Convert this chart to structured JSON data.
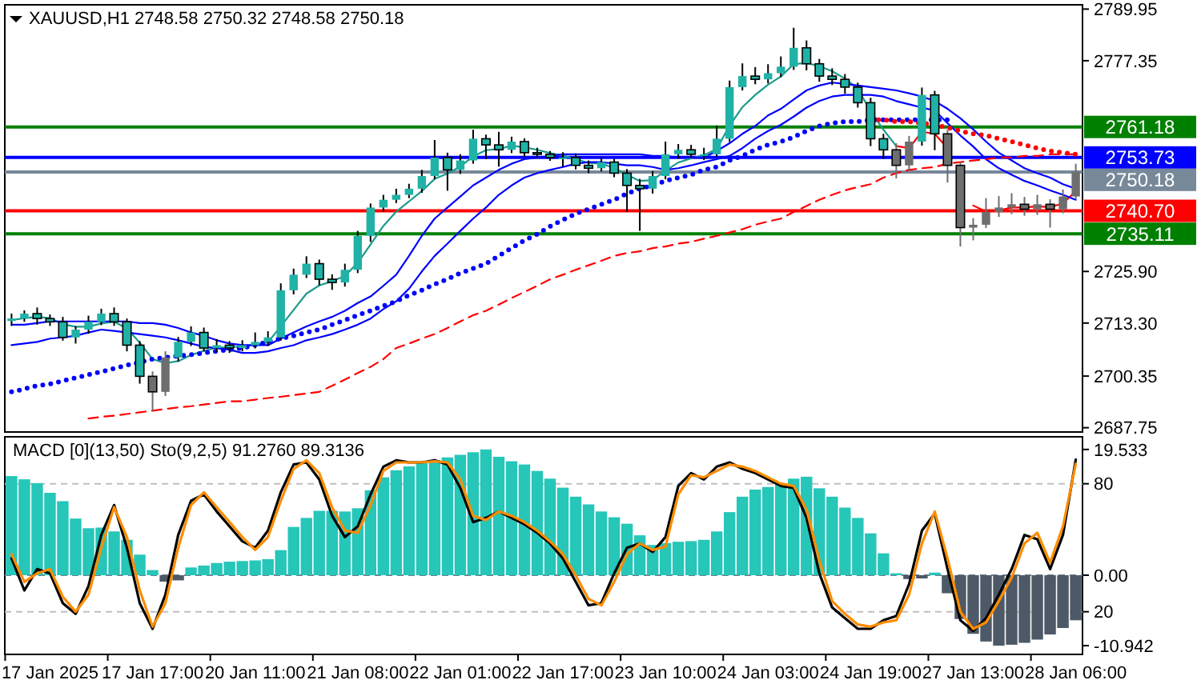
{
  "chart_data": [
    {
      "type": "candlestick",
      "title": "XAUUSD,H1  2748.58 2750.32 2748.58 2750.18",
      "categories": [
        null,
        null,
        null,
        null,
        null,
        null,
        null,
        null,
        null,
        null,
        null,
        null,
        null,
        null,
        null,
        null,
        null,
        null,
        null,
        null,
        null,
        null,
        null,
        null,
        null,
        null,
        null,
        null,
        null,
        null,
        null,
        null,
        null,
        null,
        null,
        null,
        null,
        null,
        null,
        null,
        null,
        null,
        null,
        null,
        null,
        null,
        null,
        null,
        null,
        null,
        null,
        null,
        null,
        null,
        null,
        null,
        null,
        null,
        null,
        null,
        null,
        null,
        null,
        null,
        null,
        null,
        null,
        null,
        null,
        null,
        null,
        null,
        null,
        null,
        null,
        null,
        null,
        null,
        null,
        null,
        null,
        null,
        null,
        null
      ],
      "ohlc": [
        [
          2713.8,
          2715.6,
          2712.6,
          2714.4
        ],
        [
          2714.4,
          2716.4,
          2713.6,
          2715.6
        ],
        [
          2715.6,
          2717.1,
          2712.9,
          2714.4
        ],
        [
          2714.4,
          2715.4,
          2712.6,
          2713.6
        ],
        [
          2713.6,
          2714.8,
          2709.0,
          2709.8
        ],
        [
          2709.8,
          2712.5,
          2708.3,
          2711.7
        ],
        [
          2711.7,
          2715.1,
          2710.7,
          2713.6
        ],
        [
          2713.6,
          2716.8,
          2712.8,
          2715.6
        ],
        [
          2715.6,
          2717.1,
          2712.6,
          2713.6
        ],
        [
          2713.6,
          2714.4,
          2706.4,
          2707.9
        ],
        [
          2707.9,
          2708.9,
          2698.5,
          2700.3
        ],
        [
          2700.3,
          2701.5,
          2691.9,
          2696.5
        ],
        [
          2696.5,
          2706.4,
          2695.5,
          2704.9
        ],
        [
          2704.9,
          2709.9,
          2703.9,
          2708.7
        ],
        [
          2708.7,
          2712.5,
          2707.7,
          2711.0
        ],
        [
          2711.0,
          2712.2,
          2706.4,
          2707.2
        ],
        [
          2707.2,
          2709.4,
          2706.2,
          2707.9
        ],
        [
          2707.9,
          2708.9,
          2706.0,
          2707.2
        ],
        [
          2707.2,
          2709.1,
          2706.4,
          2707.9
        ],
        [
          2707.9,
          2711.0,
          2707.1,
          2708.7
        ],
        [
          2708.7,
          2711.3,
          2707.7,
          2709.8
        ],
        [
          2709.8,
          2723.0,
          2709.0,
          2721.3
        ],
        [
          2721.3,
          2726.6,
          2720.3,
          2725.1
        ],
        [
          2725.1,
          2729.6,
          2724.3,
          2727.8
        ],
        [
          2727.8,
          2728.8,
          2722.5,
          2724.0
        ],
        [
          2724.0,
          2725.2,
          2721.4,
          2723.2
        ],
        [
          2723.2,
          2727.8,
          2722.2,
          2726.3
        ],
        [
          2726.3,
          2735.8,
          2725.5,
          2734.6
        ],
        [
          2734.6,
          2742.5,
          2733.1,
          2741.5
        ],
        [
          2741.5,
          2744.6,
          2740.5,
          2743.4
        ],
        [
          2743.4,
          2746.1,
          2742.6,
          2744.6
        ],
        [
          2744.6,
          2747.3,
          2743.8,
          2746.1
        ],
        [
          2746.1,
          2750.7,
          2745.1,
          2749.2
        ],
        [
          2749.2,
          2758.0,
          2748.4,
          2753.7
        ],
        [
          2753.7,
          2754.9,
          2745.6,
          2750.7
        ],
        [
          2750.7,
          2754.5,
          2749.7,
          2753.0
        ],
        [
          2753.0,
          2760.5,
          2752.2,
          2758.3
        ],
        [
          2758.3,
          2759.3,
          2753.3,
          2756.8
        ],
        [
          2756.8,
          2760.0,
          2751.5,
          2755.6
        ],
        [
          2755.6,
          2758.8,
          2754.8,
          2757.6
        ],
        [
          2757.6,
          2758.4,
          2753.9,
          2754.9
        ],
        [
          2754.9,
          2756.1,
          2753.5,
          2754.5
        ],
        [
          2754.5,
          2755.3,
          2752.9,
          2753.7
        ],
        [
          2753.7,
          2755.0,
          2751.5,
          2753.7
        ],
        [
          2753.7,
          2754.7,
          2750.8,
          2751.8
        ],
        [
          2751.8,
          2753.0,
          2749.9,
          2751.1
        ],
        [
          2751.1,
          2753.8,
          2750.3,
          2752.6
        ],
        [
          2752.6,
          2753.4,
          2748.9,
          2749.9
        ],
        [
          2749.9,
          2750.9,
          2740.5,
          2746.9
        ],
        [
          2746.9,
          2748.5,
          2735.8,
          2746.1
        ],
        [
          2746.1,
          2750.4,
          2744.9,
          2749.2
        ],
        [
          2749.2,
          2757.6,
          2748.4,
          2754.5
        ],
        [
          2754.5,
          2757.0,
          2753.5,
          2755.6
        ],
        [
          2755.6,
          2756.8,
          2753.7,
          2754.5
        ],
        [
          2754.5,
          2756.1,
          2753.1,
          2754.5
        ],
        [
          2754.5,
          2761.5,
          2753.9,
          2758.3
        ],
        [
          2758.3,
          2772.5,
          2757.5,
          2770.9
        ],
        [
          2770.9,
          2776.7,
          2770.1,
          2773.6
        ],
        [
          2773.6,
          2775.8,
          2771.6,
          2772.8
        ],
        [
          2772.8,
          2776.5,
          2771.8,
          2774.3
        ],
        [
          2774.3,
          2778.4,
          2773.3,
          2775.9
        ],
        [
          2775.9,
          2785.4,
          2775.1,
          2780.5
        ],
        [
          2780.5,
          2782.3,
          2775.0,
          2776.6
        ],
        [
          2776.6,
          2777.8,
          2772.2,
          2773.6
        ],
        [
          2773.6,
          2775.5,
          2771.4,
          2772.8
        ],
        [
          2772.8,
          2774.1,
          2769.3,
          2770.9
        ],
        [
          2770.9,
          2772.0,
          2765.9,
          2767.1
        ],
        [
          2767.1,
          2768.3,
          2756.5,
          2758.3
        ],
        [
          2758.3,
          2759.5,
          2753.4,
          2755.6
        ],
        [
          2755.6,
          2757.2,
          2748.6,
          2751.8
        ],
        [
          2751.8,
          2759.0,
          2750.6,
          2757.6
        ],
        [
          2757.6,
          2770.8,
          2756.6,
          2769.0
        ],
        [
          2769.0,
          2770.0,
          2755.5,
          2759.5
        ],
        [
          2759.5,
          2760.5,
          2747.6,
          2751.8
        ],
        [
          2751.8,
          2752.6,
          2732.0,
          2736.6
        ],
        [
          2736.6,
          2738.9,
          2733.5,
          2737.3
        ],
        [
          2737.3,
          2743.8,
          2736.5,
          2740.4
        ],
        [
          2740.4,
          2744.3,
          2739.2,
          2741.5
        ],
        [
          2741.5,
          2745.0,
          2739.9,
          2742.3
        ],
        [
          2742.3,
          2744.1,
          2739.5,
          2741.1
        ],
        [
          2741.1,
          2744.6,
          2739.7,
          2742.3
        ],
        [
          2742.3,
          2743.5,
          2736.6,
          2741.1
        ],
        [
          2741.1,
          2745.9,
          2740.1,
          2744.2
        ],
        [
          2744.2,
          2752.2,
          2743.6,
          2750.18
        ]
      ],
      "colors": [
        "#20b2a6",
        "#20b2a6",
        "#20b2a6",
        "#20b2a6",
        "#20b2a6",
        "#20b2a6",
        "#20b2a6",
        "#20b2a6",
        "#20b2a6",
        "#20b2a6",
        "#20b2a6",
        "#6e6e6e",
        "#6e6e6e",
        "#20b2a6",
        "#20b2a6",
        "#20b2a6",
        "#20b2a6",
        "#20b2a6",
        "#20b2a6",
        "#20b2a6",
        "#20b2a6",
        "#20b2a6",
        "#20b2a6",
        "#20b2a6",
        "#20b2a6",
        "#20b2a6",
        "#20b2a6",
        "#20b2a6",
        "#20b2a6",
        "#20b2a6",
        "#20b2a6",
        "#20b2a6",
        "#20b2a6",
        "#20b2a6",
        "#20b2a6",
        "#20b2a6",
        "#20b2a6",
        "#20b2a6",
        "#20b2a6",
        "#20b2a6",
        "#20b2a6",
        "#20b2a6",
        "#20b2a6",
        "#20b2a6",
        "#20b2a6",
        "#20b2a6",
        "#20b2a6",
        "#20b2a6",
        "#20b2a6",
        "#20b2a6",
        "#20b2a6",
        "#20b2a6",
        "#20b2a6",
        "#20b2a6",
        "#20b2a6",
        "#20b2a6",
        "#20b2a6",
        "#20b2a6",
        "#20b2a6",
        "#20b2a6",
        "#20b2a6",
        "#20b2a6",
        "#20b2a6",
        "#20b2a6",
        "#20b2a6",
        "#20b2a6",
        "#20b2a6",
        "#20b2a6",
        "#20b2a6",
        "#6e6e6e",
        "#6e6e6e",
        "#20b2a6",
        "#20b2a6",
        "#6e6e6e",
        "#6e6e6e",
        "#6e6e6e",
        "#6e6e6e",
        "#6e6e6e",
        "#6e6e6e",
        "#6e6e6e",
        "#6e6e6e",
        "#6e6e6e",
        "#6e6e6e",
        "#6e6e6e"
      ],
      "series": [
        {
          "type": "line",
          "color": "#1a9a8c",
          "line_style": "solid",
          "values": [
            2714.0,
            2714.5,
            2714.8,
            2714.5,
            2713.0,
            2712.4,
            2712.4,
            2713.2,
            2713.6,
            2712.0,
            2708.5,
            2704.5,
            2703.5,
            2704.0,
            2705.5,
            2706.5,
            2707.3,
            2707.4,
            2707.6,
            2708.0,
            2708.6,
            2712.5,
            2716.5,
            2720.5,
            2722.5,
            2723.5,
            2724.8,
            2728.0,
            2732.5,
            2737.0,
            2740.5,
            2743.0,
            2745.5,
            2748.5,
            2749.8,
            2751.5,
            2754.0,
            2755.5,
            2755.8,
            2756.6,
            2756.2,
            2755.6,
            2754.8,
            2754.2,
            2753.3,
            2752.4,
            2752.2,
            2751.2,
            2749.5,
            2748.0,
            2748.2,
            2750.5,
            2752.5,
            2753.5,
            2754.3,
            2755.8,
            2761.5,
            2766.0,
            2769.0,
            2771.5,
            2773.5,
            2776.5,
            2776.8,
            2776.0,
            2774.8,
            2773.0,
            2770.5,
            2765.0,
            2760.5,
            2756.5,
            null,
            null,
            null,
            null,
            null,
            null,
            null,
            null,
            null,
            null,
            null,
            null,
            null,
            null
          ]
        },
        {
          "type": "line",
          "color": "#ff0000",
          "line_style": "solid",
          "values": [
            null,
            null,
            null,
            null,
            null,
            null,
            null,
            null,
            null,
            null,
            null,
            null,
            null,
            null,
            null,
            null,
            null,
            null,
            null,
            null,
            null,
            null,
            null,
            null,
            null,
            null,
            null,
            null,
            null,
            null,
            null,
            null,
            null,
            null,
            null,
            null,
            null,
            null,
            null,
            null,
            null,
            null,
            null,
            null,
            null,
            null,
            null,
            null,
            null,
            null,
            null,
            null,
            null,
            null,
            null,
            null,
            null,
            null,
            null,
            null,
            null,
            null,
            null,
            null,
            null,
            null,
            null,
            null,
            null,
            2756.5,
            2756.0,
            2760.0,
            2759.5,
            2756.0,
            null,
            2742.0,
            2740.5,
            2740.8,
            2741.5,
            2741.5,
            2741.8,
            2741.6,
            2742.5,
            2745.5
          ]
        },
        {
          "type": "line",
          "color": "#0000ff",
          "line_style": "solid",
          "values": [
            2712.9,
            2712.9,
            2713.3,
            2713.7,
            2713.7,
            2713.7,
            2713.7,
            2713.7,
            2713.7,
            2713.7,
            2713.3,
            2713.3,
            2712.9,
            2712.1,
            2711.0,
            2710.2,
            2709.1,
            2708.3,
            2707.9,
            2707.9,
            2707.9,
            2709.5,
            2711.0,
            2712.5,
            2713.7,
            2714.8,
            2716.3,
            2718.2,
            2719.8,
            2722.4,
            2725.1,
            2729.7,
            2734.6,
            2738.8,
            2741.5,
            2744.2,
            2746.9,
            2748.8,
            2750.7,
            2752.2,
            2753.3,
            2753.7,
            2754.1,
            2754.5,
            2754.5,
            2754.5,
            2754.5,
            2754.5,
            2754.5,
            2754.5,
            2754.1,
            2754.1,
            2753.7,
            2753.7,
            2753.7,
            2755.3,
            2757.2,
            2759.5,
            2761.4,
            2764.0,
            2765.6,
            2767.9,
            2770.1,
            2771.3,
            2772.0,
            2771.7,
            2771.3,
            2770.9,
            2770.5,
            2770.1,
            2769.4,
            2768.6,
            2767.5,
            2765.6,
            2763.3,
            2760.6,
            2757.6,
            2754.9,
            2753.0,
            2751.1,
            2749.9,
            2748.8,
            2747.2,
            2746.1
          ]
        },
        {
          "type": "line",
          "color": "#0000ff",
          "line_style": "solid",
          "values": [
            2707.9,
            2708.3,
            2708.7,
            2709.5,
            2709.8,
            2710.2,
            2711.0,
            2711.7,
            2711.4,
            2711.0,
            2710.6,
            2710.2,
            2709.8,
            2709.1,
            2708.3,
            2707.5,
            2707.2,
            2706.8,
            2706.0,
            2706.0,
            2706.4,
            2707.2,
            2707.9,
            2709.1,
            2709.8,
            2710.6,
            2711.7,
            2712.9,
            2714.4,
            2716.7,
            2718.6,
            2721.7,
            2725.9,
            2729.7,
            2732.7,
            2735.8,
            2738.8,
            2741.5,
            2744.6,
            2746.9,
            2748.8,
            2749.9,
            2750.7,
            2751.4,
            2752.2,
            2752.6,
            2752.6,
            2752.2,
            2751.8,
            2751.8,
            2751.4,
            2750.7,
            2751.1,
            2751.8,
            2752.6,
            2753.3,
            2754.1,
            2756.0,
            2758.3,
            2760.2,
            2761.7,
            2763.7,
            2765.9,
            2767.5,
            2768.6,
            2769.0,
            2769.0,
            2769.0,
            2768.6,
            2767.5,
            2766.7,
            2765.9,
            2765.2,
            2762.1,
            2759.1,
            2756.4,
            2753.3,
            2751.1,
            2749.5,
            2748.0,
            2746.9,
            2745.7,
            2744.6,
            2743.4
          ]
        },
        {
          "type": "line",
          "color": "#0000ff",
          "line_style": "dotted",
          "values": [
            2696.5,
            2697.2,
            2698.0,
            2698.4,
            2699.2,
            2699.9,
            2700.7,
            2701.4,
            2702.2,
            2703.0,
            2703.7,
            2704.5,
            2704.9,
            2705.3,
            2705.6,
            2706.0,
            2706.4,
            2706.8,
            2707.2,
            2707.9,
            2708.7,
            2709.5,
            2710.2,
            2711.0,
            2711.7,
            2712.9,
            2714.0,
            2715.2,
            2716.3,
            2717.5,
            2718.6,
            2720.1,
            2721.3,
            2722.8,
            2724.0,
            2725.5,
            2726.6,
            2727.8,
            2729.7,
            2731.6,
            2733.5,
            2735.0,
            2736.9,
            2738.5,
            2740.0,
            2741.1,
            2742.3,
            2743.4,
            2744.9,
            2746.1,
            2746.9,
            2748.0,
            2748.8,
            2749.5,
            2750.7,
            2751.4,
            2753.0,
            2754.1,
            2755.6,
            2756.8,
            2757.6,
            2758.7,
            2760.2,
            2761.4,
            2762.1,
            2762.5,
            2762.5,
            2762.9,
            2762.9,
            2762.9,
            2762.9,
            2762.9,
            2762.9,
            2762.9,
            null,
            null,
            null,
            null,
            null,
            null,
            null,
            null,
            null,
            null
          ]
        },
        {
          "type": "line",
          "color": "#ff0000",
          "line_style": "dashed",
          "values": [
            null,
            null,
            null,
            null,
            null,
            null,
            2690.0,
            2690.4,
            2690.7,
            2691.1,
            2691.5,
            2691.9,
            2692.3,
            2692.7,
            2693.0,
            2693.4,
            2693.8,
            2694.2,
            2694.2,
            2694.6,
            2695.0,
            2695.3,
            2695.7,
            2696.1,
            2696.5,
            2698.0,
            2699.5,
            2701.1,
            2702.6,
            2704.5,
            2707.2,
            2708.3,
            2709.5,
            2710.6,
            2712.1,
            2713.7,
            2715.2,
            2716.3,
            2717.8,
            2719.4,
            2720.9,
            2722.4,
            2724.0,
            2725.1,
            2726.3,
            2727.4,
            2728.5,
            2729.7,
            2730.4,
            2730.8,
            2731.6,
            2732.0,
            2732.7,
            2733.1,
            2733.9,
            2734.6,
            2735.4,
            2736.2,
            2737.3,
            2738.1,
            2738.8,
            2740.4,
            2741.9,
            2743.4,
            2744.6,
            2745.7,
            2746.5,
            2747.2,
            2748.8,
            2749.9,
            2750.7,
            2751.1,
            2751.4,
            2752.2,
            2752.6,
            2753.0,
            2753.3,
            2753.7,
            2753.7,
            2754.1,
            2754.1,
            2754.5,
            2754.5,
            2754.5
          ]
        },
        {
          "type": "line",
          "color": "#ff0000",
          "line_style": "dotted",
          "values": [
            null,
            null,
            null,
            null,
            null,
            null,
            null,
            null,
            null,
            null,
            null,
            null,
            null,
            null,
            null,
            null,
            null,
            null,
            null,
            null,
            null,
            null,
            null,
            null,
            null,
            null,
            null,
            null,
            null,
            null,
            null,
            null,
            null,
            null,
            null,
            null,
            null,
            null,
            null,
            null,
            null,
            null,
            null,
            null,
            null,
            null,
            null,
            null,
            null,
            null,
            null,
            null,
            null,
            null,
            null,
            null,
            null,
            null,
            null,
            null,
            null,
            null,
            null,
            null,
            null,
            null,
            null,
            2762.9,
            2762.9,
            2762.5,
            2762.5,
            2762.1,
            2761.7,
            2761.0,
            2760.2,
            2759.5,
            2759.1,
            2758.3,
            2757.6,
            2756.8,
            2756.0,
            2755.3,
            2754.9,
            2754.5
          ]
        }
      ],
      "ylim": [
        2686.7,
        2791.0
      ],
      "yticks": [
        2789.95,
        2777.35,
        {
          "value": 2725.9,
          "label": "2725.90"
        },
        {
          "value": 2713.3,
          "label": "2713.30"
        },
        2700.35,
        2687.75
      ],
      "ref_lines": [
        {
          "axis": "y",
          "value": 2761.18,
          "label": "2761.18",
          "color": "#008000"
        },
        {
          "axis": "y",
          "value": 2753.73,
          "label": "2753.73",
          "color": "#0000ff"
        },
        {
          "axis": "y",
          "value": 2750.18,
          "label": "2750.18",
          "color": "#778899"
        },
        {
          "axis": "y",
          "value": 2740.7,
          "label": "2740.70",
          "color": "#ff0000"
        },
        {
          "axis": "y",
          "value": 2735.11,
          "label": "2735.11",
          "color": "#008000"
        }
      ],
      "tick_labels": "y"
    },
    {
      "type": "bar",
      "title": "MACD [0](13,50)  Sto(9,2,5) 91.2760 89.3136",
      "categories": [
        null,
        null,
        null,
        "17 Jan 2025",
        null,
        null,
        null,
        null,
        null,
        null,
        null,
        "17 Jan 17:00",
        null,
        null,
        null,
        null,
        null,
        null,
        null,
        "20 Jan 11:00",
        null,
        null,
        null,
        null,
        null,
        null,
        null,
        "21 Jan 08:00",
        null,
        null,
        null,
        null,
        null,
        null,
        null,
        "22 Jan 01:00",
        null,
        null,
        null,
        null,
        null,
        null,
        null,
        "22 Jan 17:00",
        null,
        null,
        null,
        null,
        null,
        null,
        null,
        "23 Jan 10:00",
        null,
        null,
        null,
        null,
        null,
        null,
        null,
        "24 Jan 03:00",
        null,
        null,
        null,
        null,
        null,
        null,
        null,
        "24 Jan 19:00",
        null,
        null,
        null,
        null,
        null,
        null,
        null,
        "27 Jan 13:00",
        null,
        null,
        null,
        null,
        null,
        null,
        null,
        "28 Jan 06:00"
      ],
      "series": [
        {
          "values": [
            15.4,
            14.9,
            14.3,
            12.8,
            11.5,
            8.8,
            7.3,
            7.4,
            6.8,
            5.5,
            3.2,
            0.8,
            -1.0,
            -0.8,
            1.2,
            1.5,
            1.9,
            2.1,
            2.2,
            2.3,
            2.5,
            3.9,
            7.5,
            8.9,
            10.0,
            10.0,
            9.9,
            10.4,
            13.2,
            15.2,
            16.3,
            16.9,
            17.4,
            17.9,
            18.3,
            18.7,
            19.1,
            19.533,
            18.4,
            17.7,
            17.2,
            16.2,
            15.0,
            13.6,
            12.2,
            11.0,
            9.9,
            9.0,
            8.0,
            6.2,
            4.7,
            5.0,
            5.2,
            5.3,
            5.5,
            6.8,
            9.8,
            12.2,
            13.3,
            13.7,
            14.3,
            15.0,
            15.3,
            13.5,
            12.2,
            10.5,
            8.9,
            6.5,
            3.4,
            0.3,
            -0.6,
            -0.5,
            0.4,
            -2.8,
            -6.8,
            -9.1,
            -10.3,
            -10.942,
            -10.8,
            -10.5,
            -10.0,
            -9.2,
            -8.2,
            -7.0
          ],
          "colors": [
            "#26c6b9",
            "#26c6b9",
            "#26c6b9",
            "#26c6b9",
            "#26c6b9",
            "#26c6b9",
            "#26c6b9",
            "#26c6b9",
            "#26c6b9",
            "#26c6b9",
            "#26c6b9",
            "#26c6b9",
            "#4d5966",
            "#4d5966",
            "#26c6b9",
            "#26c6b9",
            "#26c6b9",
            "#26c6b9",
            "#26c6b9",
            "#26c6b9",
            "#26c6b9",
            "#26c6b9",
            "#26c6b9",
            "#26c6b9",
            "#26c6b9",
            "#26c6b9",
            "#26c6b9",
            "#26c6b9",
            "#26c6b9",
            "#26c6b9",
            "#26c6b9",
            "#26c6b9",
            "#26c6b9",
            "#26c6b9",
            "#26c6b9",
            "#26c6b9",
            "#26c6b9",
            "#26c6b9",
            "#26c6b9",
            "#26c6b9",
            "#26c6b9",
            "#26c6b9",
            "#26c6b9",
            "#26c6b9",
            "#26c6b9",
            "#26c6b9",
            "#26c6b9",
            "#26c6b9",
            "#26c6b9",
            "#26c6b9",
            "#26c6b9",
            "#26c6b9",
            "#26c6b9",
            "#26c6b9",
            "#26c6b9",
            "#26c6b9",
            "#26c6b9",
            "#26c6b9",
            "#26c6b9",
            "#26c6b9",
            "#26c6b9",
            "#26c6b9",
            "#26c6b9",
            "#26c6b9",
            "#26c6b9",
            "#26c6b9",
            "#26c6b9",
            "#26c6b9",
            "#26c6b9",
            "#26c6b9",
            "#4d5966",
            "#4d5966",
            "#26c6b9",
            "#4d5966",
            "#4d5966",
            "#4d5966",
            "#4d5966",
            "#4d5966",
            "#4d5966",
            "#4d5966",
            "#4d5966",
            "#4d5966",
            "#4d5966",
            "#4d5966"
          ]
        },
        {
          "type": "line",
          "axis": "y2",
          "color": "#000000",
          "values": [
            45,
            30,
            40,
            38,
            24,
            19,
            32,
            56,
            70,
            50,
            24,
            12,
            28,
            56,
            72,
            75,
            67,
            60,
            53,
            50,
            58,
            76,
            89,
            90,
            82,
            65,
            55,
            60,
            75,
            88,
            91,
            90,
            90,
            91,
            89,
            78,
            62,
            64,
            67,
            64,
            61,
            57,
            52,
            45,
            34,
            23,
            24,
            38,
            50,
            52,
            48,
            55,
            79,
            85,
            82,
            88,
            90,
            87,
            85,
            82,
            79,
            78,
            64,
            38,
            22,
            17,
            12,
            12,
            16,
            18,
            33,
            58,
            66,
            40,
            16,
            11,
            17,
            28,
            40,
            56,
            54,
            40,
            56,
            91.276
          ]
        },
        {
          "type": "line",
          "axis": "y2",
          "color": "#ff8c00",
          "values": [
            47,
            34,
            38,
            40,
            27,
            20,
            28,
            50,
            69,
            55,
            30,
            13,
            24,
            50,
            70,
            76,
            69,
            62,
            55,
            49,
            55,
            72,
            87,
            91,
            85,
            69,
            58,
            57,
            70,
            86,
            90,
            90,
            90,
            90.5,
            90,
            82,
            65,
            63,
            67,
            65,
            62,
            58,
            53,
            47,
            37,
            26,
            23,
            34,
            47,
            52,
            49,
            50.5,
            75,
            84,
            83,
            86,
            89,
            88,
            86,
            83,
            80,
            79,
            68,
            44,
            25,
            19,
            14,
            13,
            15,
            16,
            28,
            52,
            67,
            45,
            20,
            12,
            15,
            25,
            36,
            52,
            57,
            43,
            60,
            89.3136
          ]
        }
      ],
      "ylim": [
        -12.3,
        21.5
      ],
      "yticks": [
        19.533,
        {
          "value": 0,
          "label": "0.00"
        },
        -10.942
      ],
      "y2lim": [
        0,
        102
      ],
      "y2ticks": [
        80,
        20
      ],
      "ref_lines": [
        {
          "axis": "y2",
          "value": 80,
          "color": "#c0c0c0",
          "line_style": "dashed"
        },
        {
          "axis": "y2",
          "value": 20,
          "color": "#c0c0c0",
          "line_style": "dashed"
        },
        {
          "axis": "y",
          "value": 0,
          "color": "#708090",
          "line_style": "dashed"
        }
      ]
    }
  ]
}
